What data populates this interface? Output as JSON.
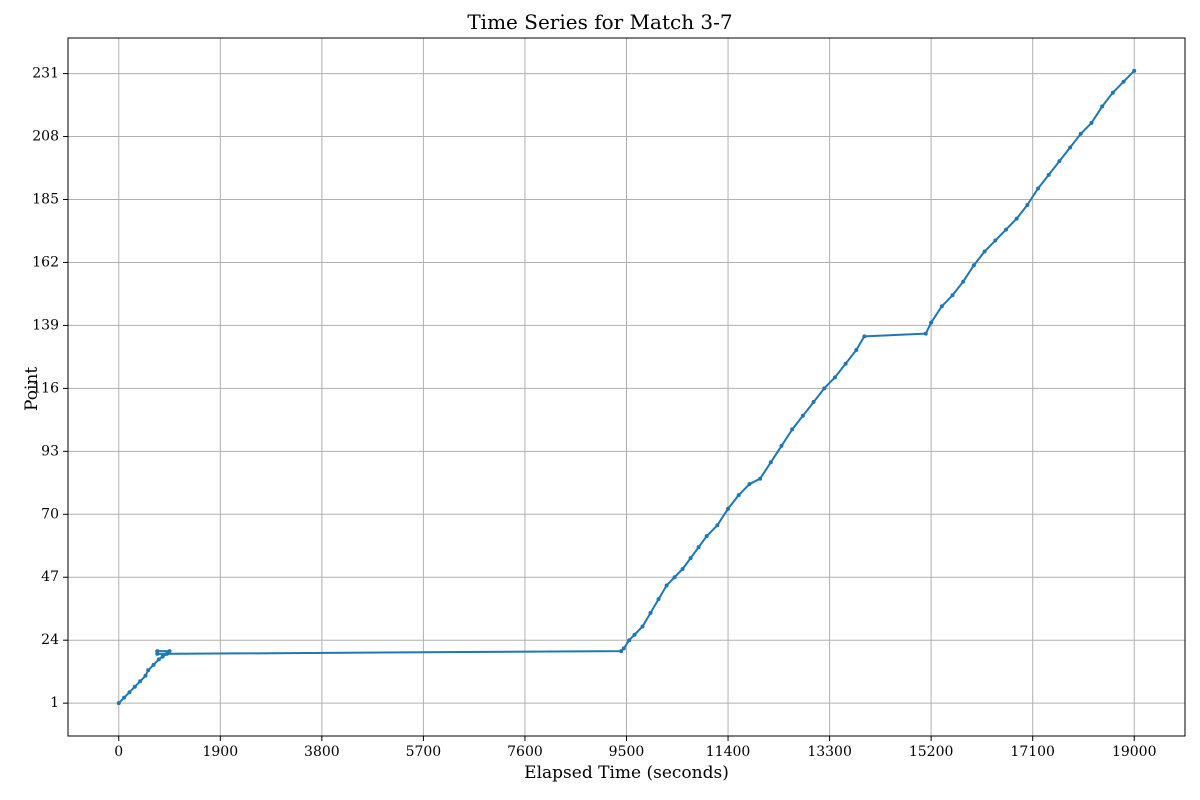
{
  "chart_data": {
    "type": "line",
    "title": "Time Series for Match 3-7",
    "xlabel": "Elapsed Time (seconds)",
    "ylabel": "Point",
    "xlim": [
      -950,
      19950
    ],
    "ylim": [
      -11,
      244
    ],
    "x_ticks": [
      0,
      1900,
      3800,
      5700,
      7600,
      9500,
      11400,
      13300,
      15200,
      17100,
      19000
    ],
    "y_ticks": [
      1,
      24,
      47,
      70,
      93,
      116,
      139,
      162,
      185,
      208,
      231
    ],
    "grid": true,
    "series": [
      {
        "color": "#1f77b4",
        "marker": "dot",
        "points": [
          [
            0,
            1
          ],
          [
            100,
            3
          ],
          [
            200,
            5
          ],
          [
            300,
            7
          ],
          [
            400,
            9
          ],
          [
            500,
            11
          ],
          [
            550,
            13
          ],
          [
            650,
            15
          ],
          [
            750,
            17
          ],
          [
            820,
            18
          ],
          [
            900,
            19
          ],
          [
            950,
            20
          ],
          [
            720,
            20
          ],
          [
            720,
            19
          ],
          [
            9400,
            20
          ],
          [
            9450,
            21
          ],
          [
            9550,
            24
          ],
          [
            9650,
            26
          ],
          [
            9800,
            29
          ],
          [
            9950,
            34
          ],
          [
            10100,
            39
          ],
          [
            10250,
            44
          ],
          [
            10400,
            47
          ],
          [
            10550,
            50
          ],
          [
            10700,
            54
          ],
          [
            10850,
            58
          ],
          [
            11000,
            62
          ],
          [
            11200,
            66
          ],
          [
            11400,
            72
          ],
          [
            11600,
            77
          ],
          [
            11800,
            81
          ],
          [
            12000,
            83
          ],
          [
            12200,
            89
          ],
          [
            12400,
            95
          ],
          [
            12600,
            101
          ],
          [
            12800,
            106
          ],
          [
            13000,
            111
          ],
          [
            13200,
            116
          ],
          [
            13400,
            120
          ],
          [
            13600,
            125
          ],
          [
            13800,
            130
          ],
          [
            13950,
            135
          ],
          [
            15100,
            136
          ],
          [
            15200,
            140
          ],
          [
            15400,
            146
          ],
          [
            15600,
            150
          ],
          [
            15800,
            155
          ],
          [
            16000,
            161
          ],
          [
            16200,
            166
          ],
          [
            16400,
            170
          ],
          [
            16600,
            174
          ],
          [
            16800,
            178
          ],
          [
            17000,
            183
          ],
          [
            17200,
            189
          ],
          [
            17400,
            194
          ],
          [
            17600,
            199
          ],
          [
            17800,
            204
          ],
          [
            18000,
            209
          ],
          [
            18200,
            213
          ],
          [
            18400,
            219
          ],
          [
            18600,
            224
          ],
          [
            18800,
            228
          ],
          [
            19000,
            232
          ]
        ]
      }
    ]
  }
}
